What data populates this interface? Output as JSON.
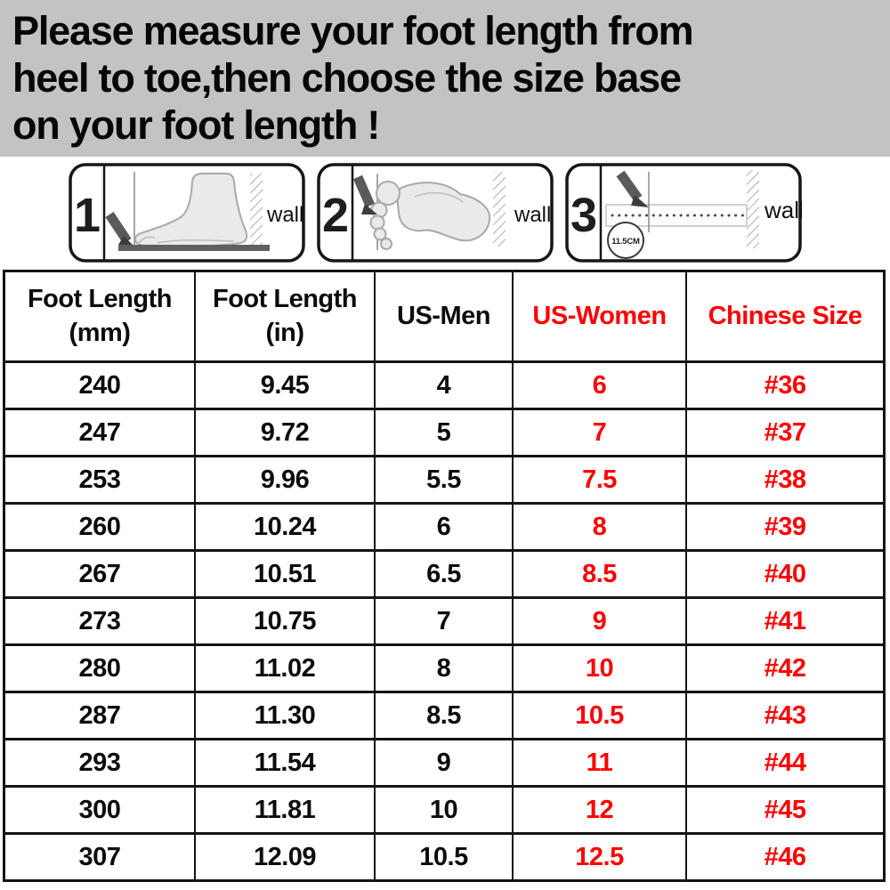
{
  "banner": {
    "lines": [
      "Please measure your foot length from",
      "heel to toe,then choose the size base",
      "on your foot length !"
    ],
    "bg_color": "#c3c3c3",
    "text_color": "#070707"
  },
  "steps": [
    {
      "number": "1",
      "wall_label": "wall",
      "icon": "foot-side-measure"
    },
    {
      "number": "2",
      "wall_label": "wall",
      "icon": "footprint-measure"
    },
    {
      "number": "3",
      "wall_label": "wall",
      "icon": "ruler-measure",
      "measurement_label": "11.5CM"
    }
  ],
  "size_table": {
    "border_color": "#141414",
    "red_color": "#fe0000",
    "red_columns": [
      3,
      4
    ],
    "headers": [
      {
        "title": "Foot Length",
        "sub": "(mm)",
        "red": false
      },
      {
        "title": "Foot Length",
        "sub": "(in)",
        "red": false
      },
      {
        "title": "US-Men",
        "sub": "",
        "red": false
      },
      {
        "title": "US-Women",
        "sub": "",
        "red": true
      },
      {
        "title": "Chinese Size",
        "sub": "",
        "red": true
      }
    ],
    "rows": [
      [
        "240",
        "9.45",
        "4",
        "6",
        "#36"
      ],
      [
        "247",
        "9.72",
        "5",
        "7",
        "#37"
      ],
      [
        "253",
        "9.96",
        "5.5",
        "7.5",
        "#38"
      ],
      [
        "260",
        "10.24",
        "6",
        "8",
        "#39"
      ],
      [
        "267",
        "10.51",
        "6.5",
        "8.5",
        "#40"
      ],
      [
        "273",
        "10.75",
        "7",
        "9",
        "#41"
      ],
      [
        "280",
        "11.02",
        "8",
        "10",
        "#42"
      ],
      [
        "287",
        "11.30",
        "8.5",
        "10.5",
        "#43"
      ],
      [
        "293",
        "11.54",
        "9",
        "11",
        "#44"
      ],
      [
        "300",
        "11.81",
        "10",
        "12",
        "#45"
      ],
      [
        "307",
        "12.09",
        "10.5",
        "12.5",
        "#46"
      ]
    ]
  },
  "chart_data": {
    "type": "table",
    "columns": [
      "Foot Length (mm)",
      "Foot Length (in)",
      "US-Men",
      "US-Women",
      "Chinese Size"
    ],
    "rows": [
      [
        "240",
        "9.45",
        "4",
        "6",
        "#36"
      ],
      [
        "247",
        "9.72",
        "5",
        "7",
        "#37"
      ],
      [
        "253",
        "9.96",
        "5.5",
        "7.5",
        "#38"
      ],
      [
        "260",
        "10.24",
        "6",
        "8",
        "#39"
      ],
      [
        "267",
        "10.51",
        "6.5",
        "8.5",
        "#40"
      ],
      [
        "273",
        "10.75",
        "7",
        "9",
        "#41"
      ],
      [
        "280",
        "11.02",
        "8",
        "10",
        "#42"
      ],
      [
        "287",
        "11.30",
        "8.5",
        "10.5",
        "#43"
      ],
      [
        "293",
        "11.54",
        "9",
        "11",
        "#44"
      ],
      [
        "300",
        "11.81",
        "10",
        "12",
        "#45"
      ],
      [
        "307",
        "12.09",
        "10.5",
        "12.5",
        "#46"
      ]
    ]
  }
}
